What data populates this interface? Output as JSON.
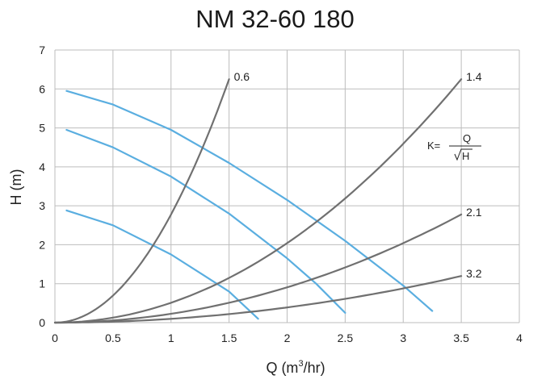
{
  "chart_data": {
    "type": "line",
    "title": "NM 32-60 180",
    "xlabel": "Q (m",
    "xlabel_sup": "3",
    "xlabel_end": "/hr)",
    "ylabel": "H (m)",
    "xlim": [
      0,
      4
    ],
    "ylim": [
      0,
      7
    ],
    "grid": true,
    "x_ticks": [
      "0",
      "0.5",
      "1",
      "1.5",
      "2",
      "2.5",
      "3",
      "3.5",
      "4"
    ],
    "y_ticks": [
      "0",
      "1",
      "2",
      "3",
      "4",
      "5",
      "6",
      "7"
    ],
    "formula": {
      "lhs": "K=",
      "numerator": "Q",
      "denominator": "H"
    },
    "pump_series": [
      {
        "x": [
          0.1,
          0.5,
          1.0,
          1.5,
          2.0,
          2.5,
          3.0,
          3.25
        ],
        "y": [
          5.95,
          5.6,
          4.95,
          4.1,
          3.15,
          2.1,
          0.95,
          0.3
        ]
      },
      {
        "x": [
          0.1,
          0.5,
          1.0,
          1.5,
          2.0,
          2.25,
          2.5
        ],
        "y": [
          4.95,
          4.5,
          3.75,
          2.8,
          1.65,
          1.0,
          0.25
        ]
      },
      {
        "x": [
          0.1,
          0.5,
          1.0,
          1.5,
          1.75
        ],
        "y": [
          2.88,
          2.5,
          1.75,
          0.8,
          0.1
        ]
      }
    ],
    "system_series": [
      {
        "label": "0.6",
        "k": 0.6,
        "x_end": 1.5
      },
      {
        "label": "1.4",
        "k": 1.4,
        "x_end": 3.5
      },
      {
        "label": "2.1",
        "k": 2.1,
        "x_end": 3.5
      },
      {
        "label": "3.2",
        "k": 3.2,
        "x_end": 3.5
      }
    ],
    "colors": {
      "pump": "#5aaee0",
      "system": "#707070",
      "grid": "#bdbdbd"
    }
  }
}
